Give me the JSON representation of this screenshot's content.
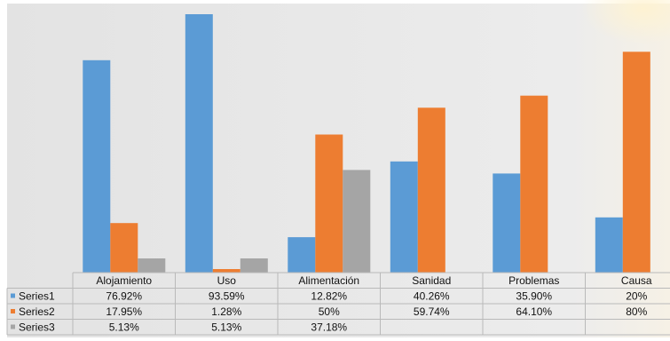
{
  "chart_data": {
    "type": "bar",
    "categories": [
      "Alojamiento",
      "Uso",
      "Alimentación",
      "Sanidad",
      "Problemas",
      "Causa"
    ],
    "series": [
      {
        "name": "Series1",
        "values": [
          76.92,
          93.59,
          12.82,
          40.26,
          35.9,
          20
        ],
        "labels": [
          "76.92%",
          "93.59%",
          "12.82%",
          "40.26%",
          "35.90%",
          "20%"
        ]
      },
      {
        "name": "Series2",
        "values": [
          17.95,
          1.28,
          50,
          59.74,
          64.1,
          80
        ],
        "labels": [
          "17.95%",
          "1.28%",
          "50%",
          "59.74%",
          "64.10%",
          "80%"
        ]
      },
      {
        "name": "Series3",
        "values": [
          5.13,
          5.13,
          37.18,
          null,
          null,
          null
        ],
        "labels": [
          "5.13%",
          "5.13%",
          "37.18%",
          "",
          "",
          ""
        ]
      }
    ],
    "colors": [
      "#5b9bd5",
      "#ed7d31",
      "#a5a5a5"
    ],
    "ylim": [
      0,
      95
    ],
    "has_data_table": true,
    "grid": false,
    "title": "",
    "xlabel": "",
    "ylabel": ""
  }
}
